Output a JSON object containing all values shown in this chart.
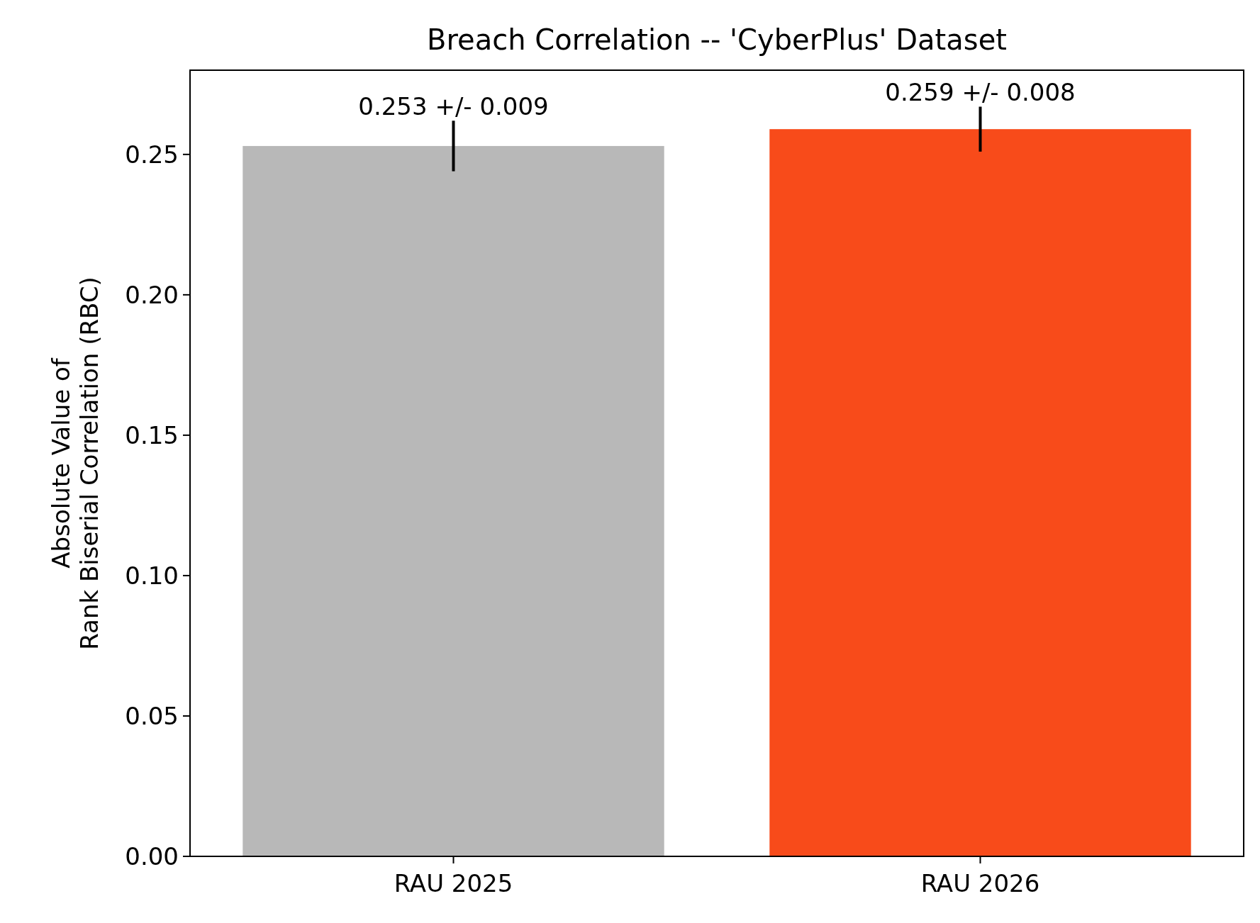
{
  "chart_data": {
    "type": "bar",
    "title": "Breach Correlation -- 'CyberPlus' Dataset",
    "ylabel": "Absolute Value of\nRank Biserial Correlation (RBC)",
    "categories": [
      "RAU 2025",
      "RAU 2026"
    ],
    "values": [
      0.253,
      0.259
    ],
    "colors": [
      "#b8b8b8",
      "#f84b1a"
    ],
    "errors": [
      0.009,
      0.008
    ],
    "value_labels": [
      "0.253 +/- 0.009",
      "0.259 +/- 0.008"
    ],
    "ylim": [
      0,
      0.28
    ],
    "yticks": [
      {
        "value": 0,
        "label": "0.00"
      },
      {
        "value": 0.05,
        "label": "0.05"
      },
      {
        "value": 0.1,
        "label": "0.10"
      },
      {
        "value": 0.15,
        "label": "0.15"
      },
      {
        "value": 0.2,
        "label": "0.20"
      },
      {
        "value": 0.25,
        "label": "0.25"
      }
    ],
    "grid": false
  }
}
